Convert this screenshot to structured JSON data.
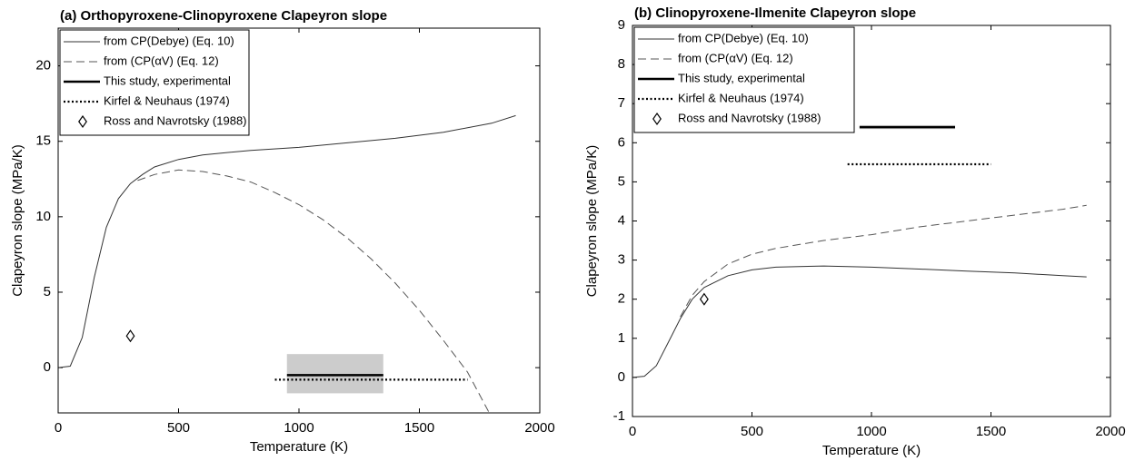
{
  "chart_data": [
    {
      "type": "line",
      "title": "(a) Orthopyroxene-Clinopyroxene Clapeyron slope",
      "xlabel": "Temperature (K)",
      "ylabel": "Clapeyron slope (MPa/K)",
      "xlim": [
        0,
        2000
      ],
      "ylim": [
        -3,
        22.5
      ],
      "xticks": [
        0,
        500,
        1000,
        1500,
        2000
      ],
      "yticks": [
        0,
        5,
        10,
        15,
        20
      ],
      "legend": "upper left",
      "band": {
        "x": [
          950,
          1350
        ],
        "y": [
          -1.7,
          0.9
        ],
        "color": "#cccccc"
      },
      "series": [
        {
          "name": "from CP(Debye) (Eq. 10)",
          "style": "solid",
          "color": "#333333",
          "x": [
            0,
            50,
            100,
            150,
            200,
            250,
            300,
            350,
            400,
            500,
            600,
            800,
            1000,
            1200,
            1400,
            1600,
            1800,
            1900
          ],
          "values": [
            0,
            0.1,
            2,
            6,
            9.3,
            11.2,
            12.2,
            12.8,
            13.3,
            13.8,
            14.1,
            14.4,
            14.6,
            14.9,
            15.2,
            15.6,
            16.2,
            16.7
          ]
        },
        {
          "name": "from (CP(αV) (Eq. 12)",
          "style": "dashed",
          "color": "#555555",
          "x": [
            330,
            400,
            500,
            600,
            700,
            800,
            900,
            1000,
            1100,
            1200,
            1300,
            1400,
            1500,
            1600,
            1700,
            1790
          ],
          "values": [
            12.4,
            12.8,
            13.1,
            13.0,
            12.7,
            12.3,
            11.6,
            10.8,
            9.8,
            8.6,
            7.2,
            5.6,
            3.8,
            1.8,
            -0.3,
            -3
          ]
        },
        {
          "name": "This study, experimental",
          "style": "thick",
          "color": "#000000",
          "x": [
            950,
            1350
          ],
          "values": [
            -0.5,
            -0.5
          ]
        },
        {
          "name": "Kirfel & Neuhaus (1974)",
          "style": "dotted",
          "color": "#000000",
          "x": [
            900,
            1700
          ],
          "values": [
            -0.8,
            -0.8
          ]
        },
        {
          "name": "Ross and Navrotsky (1988)",
          "style": "marker",
          "color": "#000000",
          "x": [
            300
          ],
          "values": [
            2.1
          ]
        }
      ]
    },
    {
      "type": "line",
      "title": "(b) Clinopyroxene-Ilmenite Clapeyron slope",
      "xlabel": "Temperature (K)",
      "ylabel": "Clapeyron slope (MPa/K)",
      "xlim": [
        0,
        2000
      ],
      "ylim": [
        -1,
        9
      ],
      "xticks": [
        0,
        500,
        1000,
        1500,
        2000
      ],
      "yticks": [
        -1,
        0,
        1,
        2,
        3,
        4,
        5,
        6,
        7,
        8,
        9
      ],
      "legend": "upper left",
      "band": {
        "x": [
          950,
          1350
        ],
        "y": [
          6.35,
          6.45
        ],
        "color": "#cccccc"
      },
      "series": [
        {
          "name": "from CP(Debye) (Eq. 10)",
          "style": "solid",
          "color": "#333333",
          "x": [
            0,
            50,
            100,
            150,
            200,
            250,
            300,
            400,
            500,
            600,
            800,
            1000,
            1200,
            1400,
            1600,
            1800,
            1900
          ],
          "values": [
            0,
            0.03,
            0.3,
            0.9,
            1.5,
            2.0,
            2.3,
            2.6,
            2.75,
            2.82,
            2.85,
            2.82,
            2.77,
            2.72,
            2.67,
            2.6,
            2.57
          ]
        },
        {
          "name": "from (CP(αV) (Eq. 12)",
          "style": "dashed",
          "color": "#555555",
          "x": [
            200,
            250,
            300,
            400,
            500,
            600,
            800,
            1000,
            1200,
            1400,
            1600,
            1800,
            1900
          ],
          "values": [
            1.55,
            2.1,
            2.45,
            2.9,
            3.15,
            3.3,
            3.5,
            3.65,
            3.85,
            4.0,
            4.15,
            4.3,
            4.4
          ]
        },
        {
          "name": "This study, experimental",
          "style": "thick",
          "color": "#000000",
          "x": [
            950,
            1350
          ],
          "values": [
            6.4,
            6.4
          ]
        },
        {
          "name": "Kirfel & Neuhaus (1974)",
          "style": "dotted",
          "color": "#000000",
          "x": [
            900,
            1500
          ],
          "values": [
            5.45,
            5.45
          ]
        },
        {
          "name": "Ross and Navrotsky (1988)",
          "style": "marker",
          "color": "#000000",
          "x": [
            300
          ],
          "values": [
            2.0
          ]
        }
      ]
    }
  ]
}
